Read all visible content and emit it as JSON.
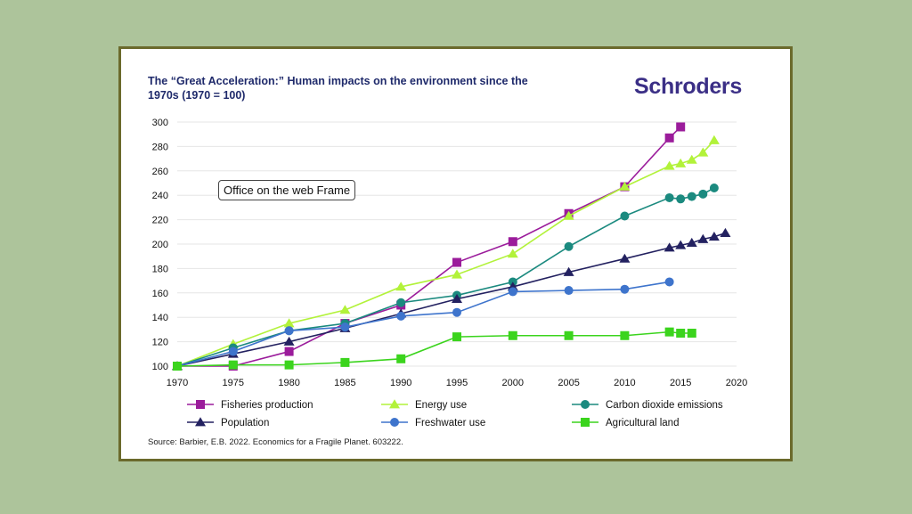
{
  "brand": "Schroders",
  "overlay_label": "Office on the web Frame",
  "colors": {
    "background": "#adc49b",
    "frame_border": "#6b6a2c",
    "title": "#1f2a6b",
    "brand": "#3b2f86",
    "grid": "#e6e6e6"
  },
  "chart_data": {
    "type": "line",
    "title": "The “Great Acceleration:” Human impacts on the environment since the 1970s (1970 = 100)",
    "source": "Source: Barbier, E.B. 2022. Economics for a Fragile Planet. 603222.",
    "xlabel": "",
    "ylabel": "",
    "xlim": [
      1970,
      2020
    ],
    "ylim": [
      100,
      300
    ],
    "xticks": [
      1970,
      1975,
      1980,
      1985,
      1990,
      1995,
      2000,
      2005,
      2010,
      2015,
      2020
    ],
    "yticks": [
      100,
      120,
      140,
      160,
      180,
      200,
      220,
      240,
      260,
      280,
      300
    ],
    "grid": true,
    "legend_position": "bottom",
    "series": [
      {
        "name": "Fisheries production",
        "color": "#9b1c9b",
        "marker": "square",
        "x": [
          1970,
          1975,
          1980,
          1985,
          1990,
          1995,
          2000,
          2005,
          2010,
          2014,
          2015
        ],
        "y": [
          100,
          100,
          112,
          135,
          150,
          185,
          202,
          225,
          247,
          287,
          296
        ]
      },
      {
        "name": "Energy use",
        "color": "#b2f23a",
        "marker": "triangle",
        "x": [
          1970,
          1975,
          1980,
          1985,
          1990,
          1995,
          2000,
          2005,
          2010,
          2014,
          2015,
          2016,
          2017,
          2018
        ],
        "y": [
          100,
          118,
          135,
          146,
          165,
          175,
          192,
          223,
          247,
          264,
          266,
          269,
          275,
          285
        ]
      },
      {
        "name": "Carbon dioxide emissions",
        "color": "#1b8a7f",
        "marker": "circle",
        "x": [
          1970,
          1975,
          1980,
          1985,
          1990,
          1995,
          2000,
          2005,
          2010,
          2014,
          2015,
          2016,
          2017,
          2018
        ],
        "y": [
          100,
          115,
          129,
          135,
          152,
          158,
          169,
          198,
          223,
          238,
          237,
          239,
          241,
          246
        ]
      },
      {
        "name": "Population",
        "color": "#232160",
        "marker": "triangle",
        "x": [
          1970,
          1975,
          1980,
          1985,
          1990,
          1995,
          2000,
          2005,
          2010,
          2014,
          2015,
          2016,
          2017,
          2018,
          2019
        ],
        "y": [
          100,
          110,
          120,
          131,
          143,
          155,
          165,
          177,
          188,
          197,
          199,
          201,
          204,
          206,
          209
        ]
      },
      {
        "name": "Freshwater use",
        "color": "#3e74cc",
        "marker": "circle",
        "x": [
          1970,
          1975,
          1980,
          1985,
          1990,
          1995,
          2000,
          2005,
          2010,
          2014
        ],
        "y": [
          100,
          112,
          129,
          132,
          141,
          144,
          161,
          162,
          163,
          169
        ]
      },
      {
        "name": "Agricultural land",
        "color": "#3bd41d",
        "marker": "square",
        "x": [
          1970,
          1975,
          1980,
          1985,
          1990,
          1995,
          2000,
          2005,
          2010,
          2014,
          2015,
          2016
        ],
        "y": [
          100,
          101,
          101,
          103,
          106,
          124,
          125,
          125,
          125,
          128,
          127,
          127
        ]
      }
    ]
  }
}
